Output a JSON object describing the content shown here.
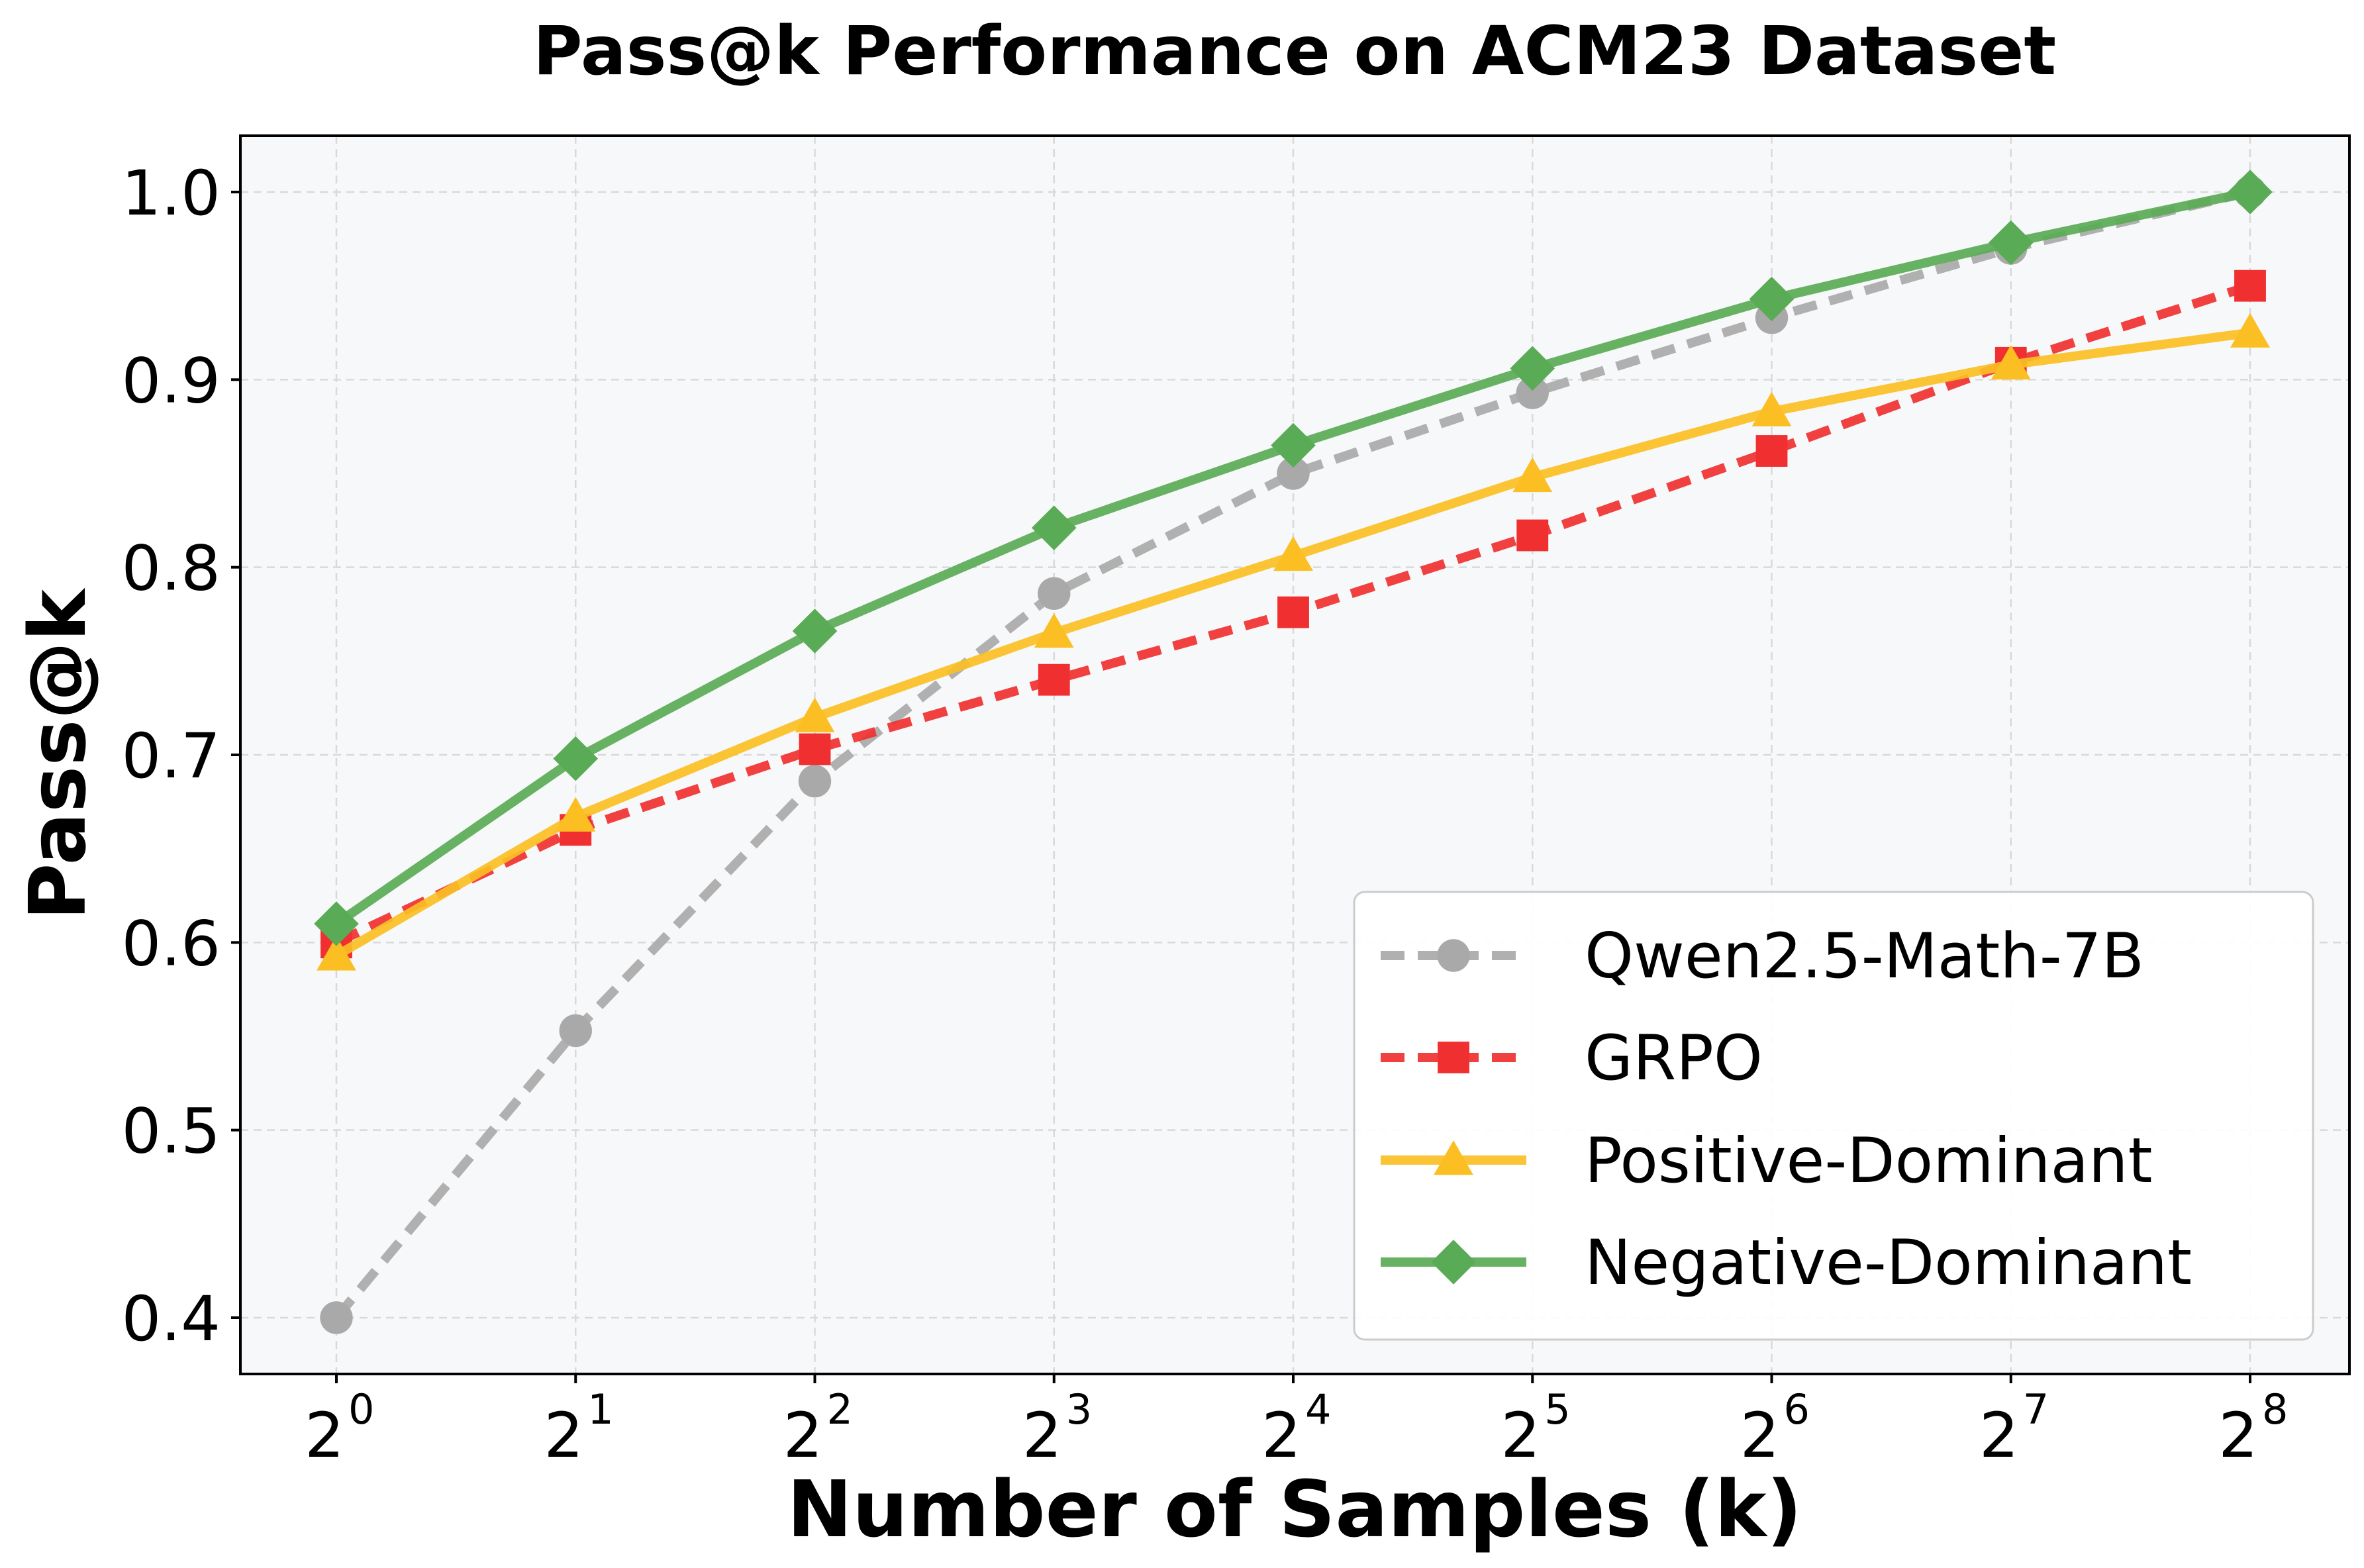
{
  "chart_data": {
    "type": "line",
    "title": "Pass@k Performance on ACM23 Dataset",
    "xlabel": "Number of Samples (k)",
    "ylabel": "Pass@k",
    "x_scale": "log2",
    "x": [
      1,
      2,
      4,
      8,
      16,
      32,
      64,
      128,
      256
    ],
    "x_tick_labels": [
      {
        "base": "2",
        "exp": "0"
      },
      {
        "base": "2",
        "exp": "1"
      },
      {
        "base": "2",
        "exp": "2"
      },
      {
        "base": "2",
        "exp": "3"
      },
      {
        "base": "2",
        "exp": "4"
      },
      {
        "base": "2",
        "exp": "5"
      },
      {
        "base": "2",
        "exp": "6"
      },
      {
        "base": "2",
        "exp": "7"
      },
      {
        "base": "2",
        "exp": "8"
      }
    ],
    "ylim": [
      0.37,
      1.03
    ],
    "y_ticks": [
      "0.4",
      "0.5",
      "0.6",
      "0.7",
      "0.8",
      "0.9",
      "1.0"
    ],
    "grid": true,
    "legend_position": "bottom-right",
    "plot_background": "#f7f8fa",
    "series": [
      {
        "name": "Qwen2.5-Math-7B",
        "color": "#a9a9a9",
        "line_style": "dashed",
        "marker": "circle",
        "values": [
          0.4,
          0.553,
          0.686,
          0.786,
          0.85,
          0.893,
          0.933,
          0.97,
          1.0
        ]
      },
      {
        "name": "GRPO",
        "color": "#f03030",
        "line_style": "dashed",
        "marker": "square",
        "values": [
          0.6,
          0.66,
          0.703,
          0.74,
          0.776,
          0.817,
          0.862,
          0.909,
          0.95
        ]
      },
      {
        "name": "Positive-Dominant",
        "color": "#fbbf24",
        "line_style": "solid",
        "marker": "triangle",
        "values": [
          0.593,
          0.667,
          0.72,
          0.765,
          0.806,
          0.848,
          0.883,
          0.908,
          0.925
        ]
      },
      {
        "name": "Negative-Dominant",
        "color": "#5aab55",
        "line_style": "solid",
        "marker": "diamond",
        "values": [
          0.61,
          0.698,
          0.766,
          0.821,
          0.865,
          0.906,
          0.943,
          0.973,
          1.0
        ]
      }
    ]
  }
}
